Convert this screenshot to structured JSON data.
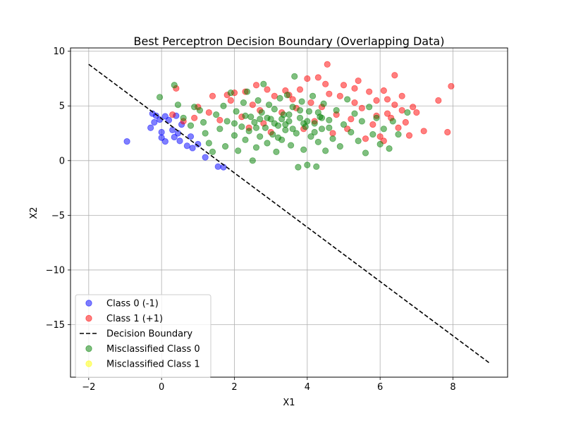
{
  "chart_data": {
    "type": "scatter",
    "title": "Best Perceptron Decision Boundary (Overlapping Data)",
    "xlabel": "X1",
    "ylabel": "X2",
    "xlim": [
      -2.5,
      9.5
    ],
    "ylim": [
      -19.8,
      10.3
    ],
    "xticks": [
      -2,
      0,
      2,
      4,
      6,
      8
    ],
    "yticks": [
      -15,
      -10,
      -5,
      0,
      5,
      10
    ],
    "xtick_labels": [
      "−2",
      "0",
      "2",
      "4",
      "6",
      "8"
    ],
    "ytick_labels": [
      "−15",
      "−10",
      "−5",
      "0",
      "5",
      "10"
    ],
    "grid": true,
    "legend_position": "lower-left",
    "series": [
      {
        "name": "Class 0 (-1)",
        "kind": "scatter",
        "color": "#0000ff",
        "alpha": 0.5,
        "points": [
          [
            -0.95,
            1.75
          ],
          [
            -0.3,
            3.0
          ],
          [
            -0.25,
            4.3
          ],
          [
            -0.15,
            4.1
          ],
          [
            -0.05,
            3.75
          ],
          [
            0.0,
            2.6
          ],
          [
            0.1,
            1.75
          ],
          [
            0.0,
            2.1
          ],
          [
            0.2,
            3.7
          ],
          [
            0.35,
            2.15
          ],
          [
            0.45,
            2.5
          ],
          [
            0.5,
            1.8
          ],
          [
            0.7,
            1.35
          ],
          [
            0.85,
            1.15
          ],
          [
            1.2,
            0.3
          ],
          [
            1.55,
            -0.55
          ],
          [
            1.7,
            -0.6
          ],
          [
            0.55,
            3.3
          ],
          [
            0.1,
            4.05
          ],
          [
            -0.2,
            3.5
          ],
          [
            0.4,
            4.1
          ],
          [
            0.8,
            2.2
          ],
          [
            1.0,
            1.5
          ],
          [
            0.3,
            2.8
          ]
        ]
      },
      {
        "name": "Class 1 (+1)",
        "kind": "scatter",
        "color": "#ff0000",
        "alpha": 0.5,
        "points": [
          [
            0.4,
            6.6
          ],
          [
            0.3,
            4.2
          ],
          [
            0.6,
            3.6
          ],
          [
            1.0,
            4.9
          ],
          [
            1.4,
            5.9
          ],
          [
            1.8,
            6.0
          ],
          [
            2.3,
            6.3
          ],
          [
            2.6,
            6.9
          ],
          [
            2.9,
            6.5
          ],
          [
            3.4,
            6.4
          ],
          [
            3.8,
            6.5
          ],
          [
            4.0,
            7.5
          ],
          [
            4.3,
            7.6
          ],
          [
            4.55,
            8.8
          ],
          [
            4.5,
            7.0
          ],
          [
            5.0,
            6.9
          ],
          [
            5.3,
            6.6
          ],
          [
            5.4,
            7.3
          ],
          [
            5.7,
            6.3
          ],
          [
            6.1,
            6.4
          ],
          [
            6.4,
            7.8
          ],
          [
            6.2,
            5.6
          ],
          [
            6.6,
            5.9
          ],
          [
            6.9,
            4.9
          ],
          [
            7.0,
            4.4
          ],
          [
            7.2,
            2.7
          ],
          [
            7.6,
            5.5
          ],
          [
            7.85,
            2.6
          ],
          [
            7.95,
            6.8
          ],
          [
            6.8,
            2.3
          ],
          [
            6.5,
            3.0
          ],
          [
            6.3,
            3.9
          ],
          [
            6.6,
            4.6
          ],
          [
            6.0,
            2.2
          ],
          [
            5.8,
            3.3
          ],
          [
            5.5,
            4.8
          ],
          [
            5.9,
            5.5
          ],
          [
            5.2,
            3.8
          ],
          [
            4.9,
            5.9
          ],
          [
            4.7,
            2.5
          ],
          [
            4.4,
            4.9
          ],
          [
            4.1,
            5.3
          ],
          [
            3.9,
            2.9
          ],
          [
            3.6,
            5.6
          ],
          [
            3.3,
            4.4
          ],
          [
            3.1,
            5.9
          ],
          [
            2.8,
            3.4
          ],
          [
            2.5,
            5.1
          ],
          [
            2.2,
            4.0
          ],
          [
            1.9,
            5.5
          ],
          [
            1.6,
            3.7
          ],
          [
            6.7,
            3.5
          ],
          [
            6.2,
            4.3
          ],
          [
            5.6,
            2.0
          ],
          [
            5.1,
            2.9
          ],
          [
            4.8,
            4.2
          ],
          [
            4.2,
            3.6
          ],
          [
            3.7,
            4.8
          ],
          [
            3.0,
            2.6
          ],
          [
            2.4,
            3.0
          ],
          [
            5.9,
            4.1
          ],
          [
            6.4,
            5.1
          ],
          [
            6.1,
            1.8
          ],
          [
            5.3,
            5.3
          ],
          [
            4.6,
            6.1
          ],
          [
            3.5,
            6.0
          ],
          [
            2.7,
            4.6
          ],
          [
            2.0,
            6.2
          ],
          [
            1.3,
            4.4
          ],
          [
            0.9,
            3.9
          ]
        ]
      },
      {
        "name": "Decision Boundary",
        "kind": "line",
        "color": "#000000",
        "dash": "dashed",
        "points": [
          [
            -2.0,
            8.8
          ],
          [
            9.0,
            -18.5
          ]
        ]
      },
      {
        "name": "Misclassified Class 0",
        "kind": "scatter",
        "color": "#008000",
        "alpha": 0.5,
        "points": [
          [
            0.35,
            6.9
          ],
          [
            -0.05,
            5.8
          ],
          [
            0.45,
            5.1
          ],
          [
            0.6,
            3.9
          ],
          [
            0.8,
            3.2
          ],
          [
            0.9,
            4.9
          ],
          [
            1.05,
            4.6
          ],
          [
            1.15,
            3.5
          ],
          [
            1.2,
            2.5
          ],
          [
            1.3,
            1.6
          ],
          [
            1.4,
            0.8
          ],
          [
            1.5,
            4.2
          ],
          [
            1.6,
            2.9
          ],
          [
            1.7,
            5.0
          ],
          [
            1.75,
            1.3
          ],
          [
            1.8,
            3.6
          ],
          [
            1.9,
            6.2
          ],
          [
            2.0,
            2.3
          ],
          [
            2.05,
            4.5
          ],
          [
            2.1,
            0.9
          ],
          [
            2.2,
            3.1
          ],
          [
            2.25,
            5.3
          ],
          [
            2.3,
            1.9
          ],
          [
            2.35,
            6.3
          ],
          [
            2.4,
            2.7
          ],
          [
            2.45,
            4.0
          ],
          [
            2.5,
            0.0
          ],
          [
            2.55,
            3.5
          ],
          [
            2.6,
            1.2
          ],
          [
            2.65,
            5.5
          ],
          [
            2.7,
            2.2
          ],
          [
            2.75,
            4.4
          ],
          [
            2.8,
            7.0
          ],
          [
            2.85,
            3.0
          ],
          [
            2.9,
            1.6
          ],
          [
            2.95,
            5.1
          ],
          [
            3.0,
            3.8
          ],
          [
            3.05,
            2.4
          ],
          [
            3.1,
            4.7
          ],
          [
            3.15,
            0.8
          ],
          [
            3.2,
            3.2
          ],
          [
            3.25,
            5.7
          ],
          [
            3.3,
            1.9
          ],
          [
            3.35,
            4.2
          ],
          [
            3.4,
            2.8
          ],
          [
            3.45,
            6.0
          ],
          [
            3.5,
            3.6
          ],
          [
            3.55,
            1.4
          ],
          [
            3.6,
            4.9
          ],
          [
            3.65,
            7.7
          ],
          [
            3.7,
            2.5
          ],
          [
            3.75,
            -0.6
          ],
          [
            3.8,
            3.9
          ],
          [
            3.85,
            5.4
          ],
          [
            3.9,
            1.0
          ],
          [
            3.95,
            3.1
          ],
          [
            4.0,
            -0.4
          ],
          [
            4.05,
            4.5
          ],
          [
            4.1,
            2.2
          ],
          [
            4.15,
            5.9
          ],
          [
            4.2,
            3.4
          ],
          [
            4.25,
            -0.55
          ],
          [
            4.3,
            1.7
          ],
          [
            4.35,
            4.0
          ],
          [
            4.4,
            2.9
          ],
          [
            4.45,
            5.2
          ],
          [
            4.5,
            0.9
          ],
          [
            4.6,
            3.7
          ],
          [
            4.7,
            2.0
          ],
          [
            4.8,
            4.6
          ],
          [
            4.9,
            1.3
          ],
          [
            5.0,
            3.3
          ],
          [
            5.1,
            5.6
          ],
          [
            5.2,
            2.6
          ],
          [
            5.3,
            4.3
          ],
          [
            5.4,
            1.8
          ],
          [
            5.5,
            3.6
          ],
          [
            5.6,
            0.7
          ],
          [
            5.7,
            4.9
          ],
          [
            5.8,
            2.4
          ],
          [
            5.9,
            3.9
          ],
          [
            6.0,
            1.5
          ],
          [
            6.1,
            2.9
          ],
          [
            6.25,
            1.1
          ],
          [
            6.35,
            3.6
          ],
          [
            6.5,
            2.4
          ],
          [
            6.75,
            4.4
          ],
          [
            2.0,
            3.4
          ],
          [
            2.3,
            4.1
          ],
          [
            2.6,
            3.0
          ],
          [
            2.9,
            3.9
          ],
          [
            3.2,
            2.1
          ],
          [
            3.4,
            3.3
          ],
          [
            3.6,
            2.9
          ],
          [
            3.8,
            4.6
          ],
          [
            4.0,
            3.6
          ],
          [
            4.2,
            2.6
          ],
          [
            4.4,
            3.9
          ],
          [
            4.6,
            3.0
          ],
          [
            3.1,
            3.4
          ],
          [
            3.3,
            3.8
          ],
          [
            3.5,
            4.2
          ],
          [
            2.7,
            3.8
          ],
          [
            3.9,
            3.4
          ],
          [
            4.3,
            4.4
          ]
        ]
      },
      {
        "name": "Misclassified Class 1",
        "kind": "scatter",
        "color": "#ffff00",
        "alpha": 0.5,
        "points": []
      }
    ]
  }
}
